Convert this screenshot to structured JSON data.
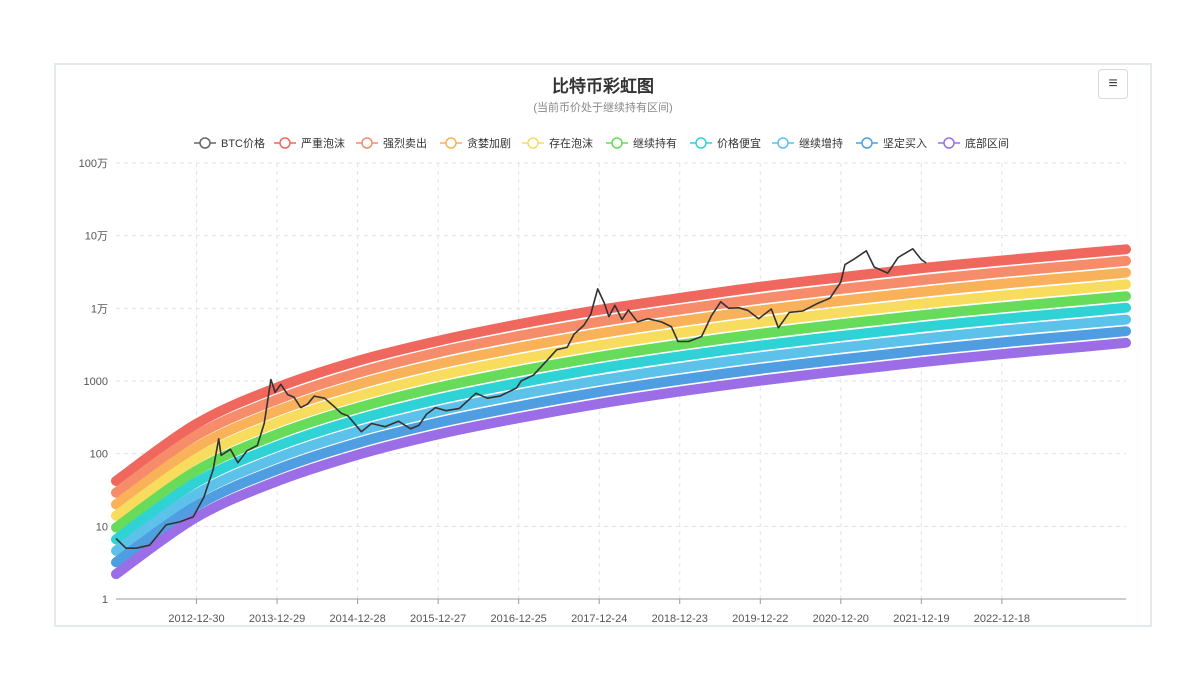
{
  "toolbar": {
    "menu_icon": "≡"
  },
  "chart_data": {
    "type": "line",
    "title": "比特币彩虹图",
    "subtitle": "(当前币价处于继续持有区间)",
    "y_scale": "log",
    "ylim": [
      1,
      1000000
    ],
    "y_ticks": [
      {
        "value": 1,
        "label": "1"
      },
      {
        "value": 10,
        "label": "10"
      },
      {
        "value": 100,
        "label": "100"
      },
      {
        "value": 1000,
        "label": "1000"
      },
      {
        "value": 10000,
        "label": "1万"
      },
      {
        "value": 100000,
        "label": "10万"
      },
      {
        "value": 1000000,
        "label": "100万"
      }
    ],
    "xlim": [
      "2012-01-01",
      "2024-07-01"
    ],
    "x_ticks": [
      "2012-12-30",
      "2013-12-29",
      "2014-12-28",
      "2015-12-27",
      "2016-12-25",
      "2017-12-24",
      "2018-12-23",
      "2019-12-22",
      "2020-12-20",
      "2021-12-19",
      "2022-12-18"
    ],
    "grid": true,
    "legend_position": "top",
    "bands_x": [
      "2012-01-01",
      "2013-01-01",
      "2014-01-01",
      "2015-01-01",
      "2016-01-01",
      "2017-01-01",
      "2018-01-01",
      "2019-01-01",
      "2020-01-01",
      "2021-01-01",
      "2022-01-01",
      "2023-01-01",
      "2024-01-01",
      "2024-07-01"
    ],
    "bands": [
      {
        "name": "严重泡沫",
        "color": "#f0675e",
        "values": [
          42,
          260,
          820,
          1900,
          3600,
          6100,
          9600,
          14000,
          20000,
          27000,
          36000,
          46000,
          58000,
          65000
        ]
      },
      {
        "name": "强烈卖出",
        "color": "#f68c6a",
        "values": [
          29,
          180,
          560,
          1300,
          2500,
          4200,
          6600,
          9700,
          13700,
          18600,
          24600,
          31800,
          40000,
          45000
        ]
      },
      {
        "name": "贪婪加剧",
        "color": "#f9b25a",
        "values": [
          20,
          124,
          390,
          900,
          1720,
          2900,
          4550,
          6700,
          9450,
          12800,
          17000,
          22000,
          27500,
          31000
        ]
      },
      {
        "name": "存在泡沫",
        "color": "#f7dc5e",
        "values": [
          14,
          86,
          270,
          620,
          1190,
          2000,
          3140,
          4620,
          6520,
          8850,
          11700,
          15100,
          19000,
          21400
        ]
      },
      {
        "name": "继续持有",
        "color": "#66dc5a",
        "values": [
          9.6,
          59,
          186,
          430,
          820,
          1380,
          2170,
          3190,
          4500,
          6100,
          8100,
          10400,
          13100,
          14700
        ]
      },
      {
        "name": "价格便宜",
        "color": "#2fd3d6",
        "values": [
          6.6,
          41,
          128,
          296,
          565,
          950,
          1500,
          2200,
          3100,
          4200,
          5580,
          7200,
          9050,
          10200
        ]
      },
      {
        "name": "继续增持",
        "color": "#5cc2ea",
        "values": [
          4.6,
          28,
          88,
          204,
          390,
          656,
          1030,
          1520,
          2140,
          2900,
          3850,
          4970,
          6250,
          7000
        ]
      },
      {
        "name": "坚定买入",
        "color": "#4f9ee2",
        "values": [
          3.2,
          19.5,
          61,
          141,
          269,
          452,
          712,
          1050,
          1480,
          2000,
          2650,
          3430,
          4310,
          4850
        ]
      },
      {
        "name": "底部区间",
        "color": "#9b6de6",
        "values": [
          2.2,
          13.5,
          42,
          97,
          186,
          312,
          491,
          723,
          1020,
          1380,
          1830,
          2370,
          2970,
          3350
        ]
      }
    ],
    "series": [
      {
        "name": "BTC价格",
        "color": "#333333",
        "x": [
          "2012-01-01",
          "2012-02-15",
          "2012-04-01",
          "2012-06-01",
          "2012-08-15",
          "2012-10-15",
          "2012-12-15",
          "2013-02-01",
          "2013-03-15",
          "2013-04-09",
          "2013-04-20",
          "2013-06-01",
          "2013-07-05",
          "2013-08-15",
          "2013-10-01",
          "2013-11-01",
          "2013-12-01",
          "2013-12-20",
          "2014-01-15",
          "2014-02-15",
          "2014-03-15",
          "2014-04-15",
          "2014-05-15",
          "2014-06-15",
          "2014-08-01",
          "2014-09-15",
          "2014-10-15",
          "2014-11-15",
          "2015-01-14",
          "2015-03-01",
          "2015-05-01",
          "2015-07-01",
          "2015-08-25",
          "2015-10-01",
          "2015-11-05",
          "2015-12-15",
          "2016-02-01",
          "2016-04-01",
          "2016-06-15",
          "2016-08-05",
          "2016-10-01",
          "2016-12-15",
          "2017-01-05",
          "2017-03-01",
          "2017-05-01",
          "2017-06-15",
          "2017-08-01",
          "2017-09-01",
          "2017-10-15",
          "2017-11-15",
          "2017-12-17",
          "2018-01-15",
          "2018-02-06",
          "2018-03-05",
          "2018-04-06",
          "2018-05-05",
          "2018-06-15",
          "2018-08-01",
          "2018-10-01",
          "2018-11-15",
          "2018-12-15",
          "2019-02-01",
          "2019-04-01",
          "2019-05-15",
          "2019-06-26",
          "2019-08-01",
          "2019-09-15",
          "2019-10-26",
          "2019-12-15",
          "2020-02-10",
          "2020-03-13",
          "2020-05-01",
          "2020-07-01",
          "2020-09-01",
          "2020-11-01",
          "2020-12-20",
          "2021-01-08",
          "2021-02-20",
          "2021-04-14",
          "2021-05-20",
          "2021-07-20",
          "2021-09-05",
          "2021-11-10",
          "2021-12-19",
          "2022-01-10"
        ],
        "values": [
          6.8,
          5.0,
          5.0,
          5.5,
          10.5,
          11.5,
          13.5,
          25,
          60,
          160,
          95,
          115,
          75,
          110,
          130,
          260,
          1050,
          700,
          900,
          650,
          600,
          430,
          480,
          620,
          580,
          440,
          360,
          330,
          200,
          260,
          235,
          280,
          220,
          245,
          350,
          430,
          390,
          420,
          680,
          580,
          620,
          800,
          1000,
          1200,
          1900,
          2700,
          2900,
          4400,
          5800,
          8200,
          18500,
          12000,
          7700,
          11000,
          7000,
          9500,
          6500,
          7200,
          6500,
          5600,
          3500,
          3500,
          4100,
          7900,
          12300,
          10000,
          10200,
          9400,
          7200,
          9800,
          5400,
          8800,
          9200,
          11500,
          13800,
          23000,
          40000,
          48000,
          62000,
          37000,
          30500,
          50000,
          66000,
          47000,
          42000
        ]
      }
    ]
  }
}
